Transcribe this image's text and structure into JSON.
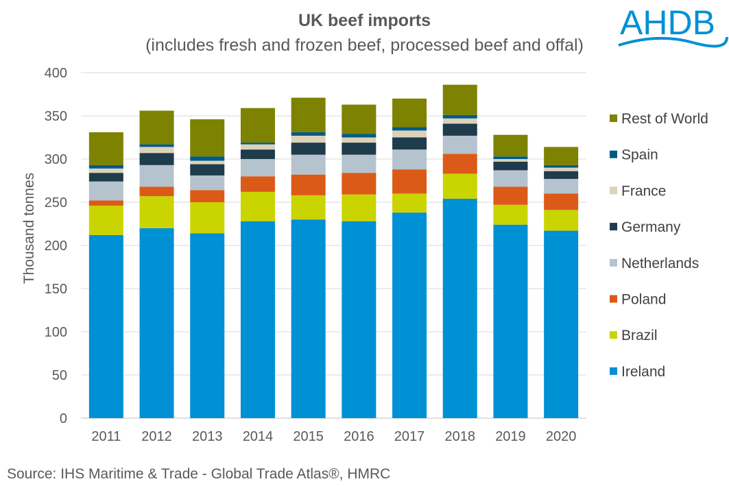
{
  "chart_data": {
    "type": "bar",
    "stacked": true,
    "title": "UK beef imports",
    "subtitle": "(includes fresh and frozen beef, processed beef and offal)",
    "xlabel": "",
    "ylabel": "Thousand tonnes",
    "ylim": [
      0,
      400
    ],
    "yticks": [
      "0",
      "50",
      "100",
      "150",
      "200",
      "250",
      "300",
      "350",
      "400"
    ],
    "categories": [
      "2011",
      "2012",
      "2013",
      "2014",
      "2015",
      "2016",
      "2017",
      "2018",
      "2019",
      "2020"
    ],
    "series": [
      {
        "name": "Ireland",
        "color": "#0090d4",
        "values": [
          212,
          220,
          214,
          228,
          230,
          228,
          238,
          254,
          224,
          217
        ]
      },
      {
        "name": "Brazil",
        "color": "#c9d400",
        "values": [
          34,
          37,
          36,
          34,
          28,
          31,
          22,
          29,
          23,
          24
        ]
      },
      {
        "name": "Poland",
        "color": "#dc5a18",
        "values": [
          6,
          11,
          14,
          18,
          24,
          25,
          28,
          23,
          21,
          19
        ]
      },
      {
        "name": "Netherlands",
        "color": "#b4c3cd",
        "values": [
          22,
          25,
          17,
          20,
          23,
          21,
          23,
          21,
          19,
          17
        ]
      },
      {
        "name": "Germany",
        "color": "#1e3c4b",
        "values": [
          10,
          14,
          13,
          11,
          14,
          14,
          14,
          14,
          10,
          9
        ]
      },
      {
        "name": "France",
        "color": "#dcd2b9",
        "values": [
          5,
          7,
          4,
          6,
          8,
          6,
          8,
          6,
          3,
          4
        ]
      },
      {
        "name": "Spain",
        "color": "#005a87",
        "values": [
          4,
          3,
          5,
          2,
          4,
          4,
          4,
          4,
          3,
          3
        ]
      },
      {
        "name": "Rest of World",
        "color": "#7d8200",
        "values": [
          38,
          39,
          43,
          40,
          40,
          34,
          33,
          35,
          25,
          21
        ]
      }
    ],
    "legend_position": "right",
    "grid": true
  },
  "source": "Source: IHS Maritime & Trade - Global Trade Atlas®, HMRC",
  "logo": {
    "text": "AHDB",
    "color": "#0090d4"
  }
}
